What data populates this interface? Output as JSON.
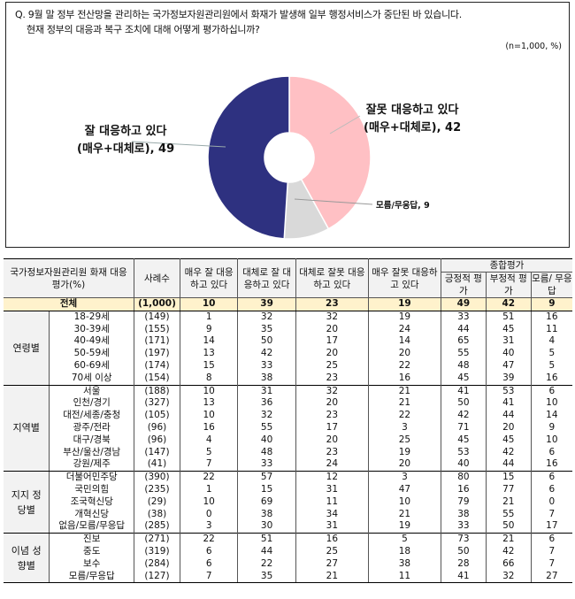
{
  "question": {
    "line1": "Q. 9월 말 정부 전산망을 관리하는 국가정보자원관리원에서 화재가 발생해 일부 행정서비스가 중단된 바 있습니다.",
    "line2": "현재 정부의 대응과 복구 조치에 대해 어떻게 평가하십니까?",
    "note": "(n=1,000, %)"
  },
  "chart_data": {
    "type": "pie",
    "title": "Q. 9월 말 정부 전산망을 관리하는 국가정보자원관리원에서 화재가 발생해 일부 행정서비스가 중단된 바 있습니다. 현재 정부의 대응과 복구 조치에 대해 어떻게 평가하십니까?",
    "subtitle": "(n=1,000, %)",
    "donut": true,
    "categories": [
      "잘 대응하고 있다 (매우+대체로)",
      "잘못 대응하고 있다 (매우+대체로)",
      "모름/무응답"
    ],
    "values": [
      49,
      42,
      9
    ],
    "colors": [
      "#2e3180",
      "#ffc0c4",
      "#d9d9d9"
    ],
    "labels": [
      {
        "line1": "잘 대응하고 있다",
        "line2": "(매우+대체로), 49"
      },
      {
        "line1": "잘못 대응하고 있다",
        "line2": "(매우+대체로), 42"
      },
      {
        "line1": "모름/무응답, 9",
        "line2": ""
      }
    ]
  },
  "table": {
    "headers": {
      "category": "국가정보자원관리원 화재 대응 평가(%)",
      "sample": "사례수",
      "very_good": "매우 잘 대응하고 있다",
      "fairly_good": "대체로 잘 대응하고 있다",
      "fairly_bad": "대체로 잘못 대응하고 있다",
      "very_bad": "매우 잘못 대응하고 있다",
      "summary": "종합평가",
      "positive": "긍정적 평가",
      "negative": "부정적 평가",
      "dk": "모름/ 무응답"
    },
    "total": {
      "label": "전체",
      "n": "(1,000)",
      "v": [
        "10",
        "39",
        "23",
        "19",
        "49",
        "42",
        "9"
      ]
    },
    "groups": [
      {
        "name": "연령별",
        "rows": [
          {
            "label": "18-29세",
            "n": "(149)",
            "v": [
              "1",
              "32",
              "32",
              "19",
              "33",
              "51",
              "16"
            ]
          },
          {
            "label": "30-39세",
            "n": "(155)",
            "v": [
              "9",
              "35",
              "20",
              "24",
              "44",
              "45",
              "11"
            ]
          },
          {
            "label": "40-49세",
            "n": "(171)",
            "v": [
              "14",
              "50",
              "17",
              "14",
              "65",
              "31",
              "4"
            ]
          },
          {
            "label": "50-59세",
            "n": "(197)",
            "v": [
              "13",
              "42",
              "20",
              "20",
              "55",
              "40",
              "5"
            ]
          },
          {
            "label": "60-69세",
            "n": "(174)",
            "v": [
              "15",
              "33",
              "25",
              "22",
              "48",
              "47",
              "5"
            ]
          },
          {
            "label": "70세 이상",
            "n": "(154)",
            "v": [
              "8",
              "38",
              "23",
              "16",
              "45",
              "39",
              "16"
            ]
          }
        ]
      },
      {
        "name": "지역별",
        "rows": [
          {
            "label": "서울",
            "n": "(188)",
            "v": [
              "10",
              "31",
              "32",
              "21",
              "41",
              "53",
              "6"
            ]
          },
          {
            "label": "인천/경기",
            "n": "(327)",
            "v": [
              "13",
              "36",
              "20",
              "21",
              "50",
              "41",
              "10"
            ]
          },
          {
            "label": "대전/세종/충청",
            "n": "(105)",
            "v": [
              "10",
              "32",
              "23",
              "22",
              "42",
              "44",
              "14"
            ]
          },
          {
            "label": "광주/전라",
            "n": "(96)",
            "v": [
              "16",
              "55",
              "17",
              "3",
              "71",
              "20",
              "9"
            ]
          },
          {
            "label": "대구/경북",
            "n": "(96)",
            "v": [
              "4",
              "40",
              "20",
              "25",
              "45",
              "45",
              "10"
            ]
          },
          {
            "label": "부산/울산/경남",
            "n": "(147)",
            "v": [
              "5",
              "48",
              "23",
              "19",
              "53",
              "42",
              "6"
            ]
          },
          {
            "label": "강원/제주",
            "n": "(41)",
            "v": [
              "7",
              "33",
              "24",
              "20",
              "40",
              "44",
              "16"
            ]
          }
        ]
      },
      {
        "name": "지지 정당별",
        "rows": [
          {
            "label": "더불어민주당",
            "n": "(390)",
            "v": [
              "22",
              "57",
              "12",
              "3",
              "80",
              "15",
              "6"
            ]
          },
          {
            "label": "국민의힘",
            "n": "(235)",
            "v": [
              "1",
              "15",
              "31",
              "47",
              "16",
              "77",
              "6"
            ]
          },
          {
            "label": "조국혁신당",
            "n": "(29)",
            "v": [
              "10",
              "69",
              "11",
              "10",
              "79",
              "21",
              "0"
            ]
          },
          {
            "label": "개혁신당",
            "n": "(38)",
            "v": [
              "0",
              "38",
              "34",
              "21",
              "38",
              "55",
              "7"
            ]
          },
          {
            "label": "없음/모름/무응답",
            "n": "(285)",
            "v": [
              "3",
              "30",
              "31",
              "19",
              "33",
              "50",
              "17"
            ]
          }
        ]
      },
      {
        "name": "이념 성향별",
        "rows": [
          {
            "label": "진보",
            "n": "(271)",
            "v": [
              "22",
              "51",
              "16",
              "5",
              "73",
              "21",
              "6"
            ]
          },
          {
            "label": "중도",
            "n": "(319)",
            "v": [
              "6",
              "44",
              "25",
              "18",
              "50",
              "42",
              "7"
            ]
          },
          {
            "label": "보수",
            "n": "(284)",
            "v": [
              "6",
              "22",
              "27",
              "38",
              "28",
              "66",
              "7"
            ]
          },
          {
            "label": "모름/무응답",
            "n": "(127)",
            "v": [
              "7",
              "35",
              "21",
              "11",
              "41",
              "32",
              "27"
            ]
          }
        ]
      }
    ]
  }
}
